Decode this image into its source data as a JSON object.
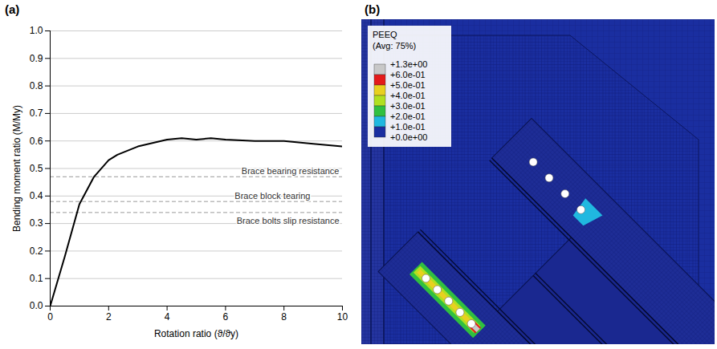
{
  "chart_data": {
    "type": "line",
    "title": "(a)",
    "x_label": "Rotation ratio (ϑ/ϑy)",
    "y_label": "Bending moment ratio (M/My)",
    "x": [
      0,
      0.5,
      1,
      1.5,
      2,
      2.3,
      3,
      4,
      4.5,
      5,
      5.5,
      6,
      7,
      8,
      9,
      10
    ],
    "values": [
      0,
      0.18,
      0.37,
      0.47,
      0.53,
      0.55,
      0.58,
      0.605,
      0.61,
      0.605,
      0.61,
      0.605,
      0.6,
      0.6,
      0.59,
      0.58
    ],
    "color": "#000000",
    "xlim": [
      0,
      10
    ],
    "xticks": [
      0,
      2,
      4,
      6,
      8,
      10
    ],
    "ylim": [
      0,
      1
    ],
    "yticks": [
      {
        "value": 0,
        "label": "0.0"
      },
      0.1,
      0.2,
      0.3,
      0.4,
      0.5,
      0.6,
      0.7,
      0.8,
      0.9,
      {
        "value": 1,
        "label": "1.0"
      }
    ],
    "grid": true,
    "annotations": [
      {
        "text": "Brace bearing resistance",
        "value": 0.47,
        "line_style": "dashed"
      },
      {
        "text": "Brace block tearing",
        "value": 0.38,
        "line_style": "dashed"
      },
      {
        "text": "Brace bolts slip resistance",
        "value": 0.34,
        "line_style": "dashed"
      }
    ]
  },
  "figure_b": {
    "label": "(b)",
    "legend": {
      "title": "PEEQ",
      "subtitle": "(Avg: 75%)",
      "labels": [
        "+1.3e+00",
        "+6.0e-01",
        "+5.0e-01",
        "+4.0e-01",
        "+3.0e-01",
        "+2.0e-01",
        "+1.0e-01",
        "+0.0e+00"
      ],
      "colors": [
        "#c8c8c8",
        "#e41a1a",
        "#e8d020",
        "#b0e020",
        "#30c040",
        "#20b8e0",
        "#1a2ea0"
      ]
    }
  }
}
